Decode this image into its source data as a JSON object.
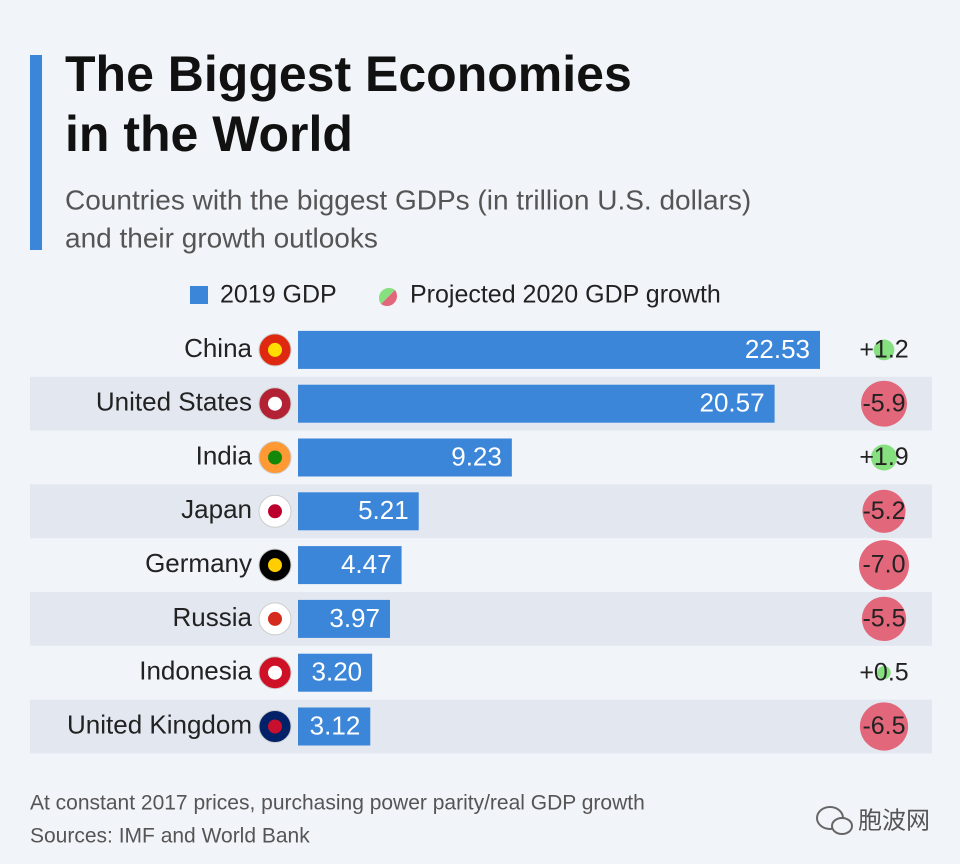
{
  "chart_data": {
    "type": "bar",
    "title_lines": [
      "The Biggest Economies",
      "in the World"
    ],
    "subtitle_lines": [
      "Countries with the biggest GDPs (in trillion U.S. dollars)",
      "and their growth outlooks"
    ],
    "categories": [
      "China",
      "United States",
      "India",
      "Japan",
      "Germany",
      "Russia",
      "Indonesia",
      "United Kingdom"
    ],
    "series": [
      {
        "name": "2019 GDP",
        "color": "#3b86d9",
        "values": [
          22.53,
          20.57,
          9.23,
          5.21,
          4.47,
          3.97,
          3.2,
          3.12
        ],
        "value_labels": [
          "22.53",
          "20.57",
          "9.23",
          "5.21",
          "4.47",
          "3.97",
          "3.20",
          "3.12"
        ]
      },
      {
        "name": "Projected 2020 GDP growth",
        "positive_color": "#86e07f",
        "negative_color": "#e3677a",
        "values": [
          1.2,
          -5.9,
          1.9,
          -5.2,
          -7.0,
          -5.5,
          0.5,
          -6.5
        ],
        "value_labels": [
          "+1.2",
          "-5.9",
          "+1.9",
          "-5.2",
          "-7.0",
          "-5.5",
          "+0.5",
          "-6.5"
        ]
      }
    ],
    "footnotes": [
      "At constant 2017 prices, purchasing power parity/real GDP growth",
      "Sources: IMF and World Bank"
    ],
    "watermark": "胞波网"
  }
}
